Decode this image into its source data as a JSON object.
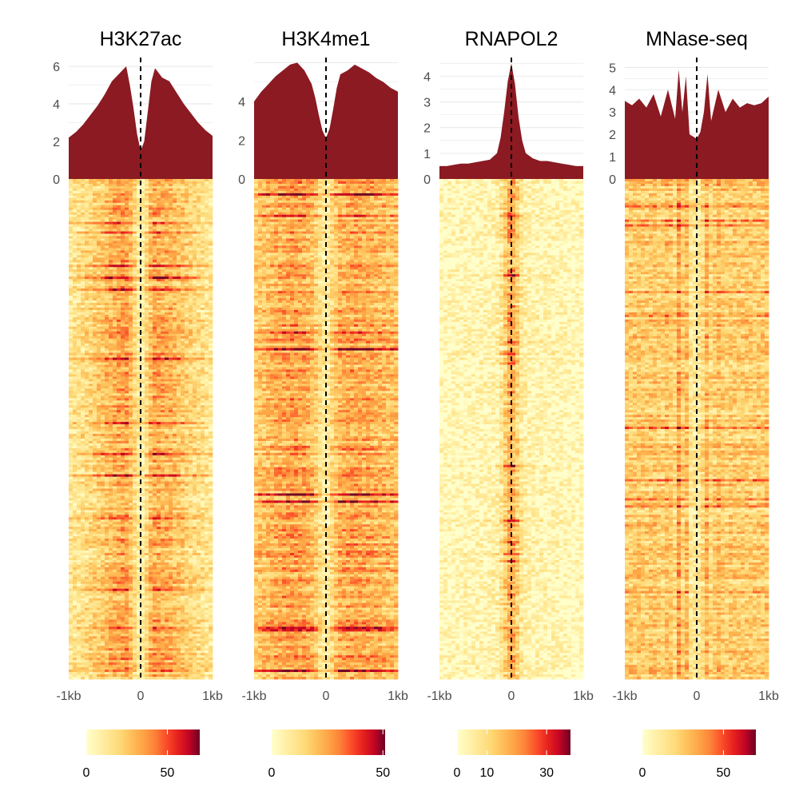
{
  "chart_data": [
    {
      "type": "heatmap",
      "title": "H3K27ac",
      "x_ticks": [
        "-1kb",
        "0",
        "1kb"
      ],
      "profile": {
        "type": "area",
        "ylim": [
          0,
          6.3
        ],
        "y_ticks": [
          0,
          2,
          4,
          6
        ],
        "x": [
          -1.0,
          -0.9,
          -0.8,
          -0.7,
          -0.6,
          -0.5,
          -0.4,
          -0.3,
          -0.2,
          -0.15,
          -0.1,
          -0.05,
          0.0,
          0.05,
          0.1,
          0.15,
          0.2,
          0.3,
          0.4,
          0.5,
          0.6,
          0.7,
          0.8,
          0.9,
          1.0
        ],
        "values": [
          2.2,
          2.5,
          2.9,
          3.4,
          3.9,
          4.5,
          5.2,
          5.6,
          6.0,
          5.0,
          3.8,
          2.4,
          1.5,
          2.0,
          3.6,
          5.2,
          5.9,
          5.4,
          5.2,
          4.6,
          4.0,
          3.5,
          3.0,
          2.6,
          2.3
        ]
      },
      "colorbar": {
        "min": 0,
        "max": 70,
        "ticks": [
          0,
          50
        ]
      }
    },
    {
      "type": "heatmap",
      "title": "H3K4me1",
      "x_ticks": [
        "-1kb",
        "0",
        "1kb"
      ],
      "profile": {
        "type": "area",
        "ylim": [
          0,
          6.1
        ],
        "y_ticks": [
          0,
          2,
          4
        ],
        "x": [
          -1.0,
          -0.9,
          -0.8,
          -0.7,
          -0.6,
          -0.5,
          -0.4,
          -0.3,
          -0.2,
          -0.15,
          -0.1,
          -0.05,
          0.0,
          0.05,
          0.1,
          0.15,
          0.2,
          0.3,
          0.4,
          0.5,
          0.6,
          0.7,
          0.8,
          0.9,
          1.0
        ],
        "values": [
          4.0,
          4.5,
          4.9,
          5.3,
          5.6,
          5.9,
          6.0,
          5.6,
          4.9,
          4.2,
          3.3,
          2.5,
          2.1,
          2.6,
          3.6,
          4.7,
          5.4,
          5.6,
          5.9,
          5.7,
          5.5,
          5.2,
          5.0,
          4.7,
          4.5
        ]
      },
      "colorbar": {
        "min": 0,
        "max": 51,
        "ticks": [
          0,
          50
        ]
      }
    },
    {
      "type": "heatmap",
      "title": "RNAPOL2",
      "x_ticks": [
        "-1kb",
        "0",
        "1kb"
      ],
      "profile": {
        "type": "area",
        "ylim": [
          0,
          4.6
        ],
        "y_ticks": [
          0,
          1,
          2,
          3,
          4
        ],
        "x": [
          -1.0,
          -0.9,
          -0.8,
          -0.7,
          -0.6,
          -0.5,
          -0.4,
          -0.3,
          -0.2,
          -0.15,
          -0.1,
          -0.05,
          0.0,
          0.05,
          0.1,
          0.15,
          0.2,
          0.3,
          0.4,
          0.5,
          0.6,
          0.7,
          0.8,
          0.9,
          1.0
        ],
        "values": [
          0.5,
          0.5,
          0.55,
          0.6,
          0.6,
          0.65,
          0.7,
          0.75,
          1.0,
          1.6,
          2.6,
          3.8,
          4.5,
          3.7,
          2.4,
          1.5,
          1.0,
          0.8,
          0.7,
          0.7,
          0.65,
          0.6,
          0.55,
          0.5,
          0.5
        ]
      },
      "colorbar": {
        "min": 0,
        "max": 38,
        "ticks": [
          0,
          10,
          30
        ]
      }
    },
    {
      "type": "heatmap",
      "title": "MNase-seq",
      "x_ticks": [
        "-1kb",
        "0",
        "1kb"
      ],
      "profile": {
        "type": "area",
        "ylim": [
          0,
          5.3
        ],
        "y_ticks": [
          0,
          1,
          2,
          3,
          4,
          5
        ],
        "x": [
          -1.0,
          -0.9,
          -0.8,
          -0.7,
          -0.6,
          -0.5,
          -0.4,
          -0.3,
          -0.25,
          -0.2,
          -0.15,
          -0.1,
          -0.05,
          0.0,
          0.05,
          0.1,
          0.15,
          0.2,
          0.25,
          0.3,
          0.4,
          0.5,
          0.6,
          0.7,
          0.8,
          0.9,
          1.0
        ],
        "values": [
          3.5,
          3.3,
          3.6,
          3.2,
          3.8,
          2.8,
          4.0,
          2.7,
          4.9,
          3.0,
          4.6,
          2.0,
          1.9,
          1.8,
          2.1,
          3.0,
          4.7,
          2.6,
          3.3,
          4.0,
          3.0,
          3.6,
          3.2,
          3.4,
          3.3,
          3.4,
          3.7
        ]
      },
      "colorbar": {
        "min": 0,
        "max": 70,
        "ticks": [
          0,
          50
        ]
      }
    }
  ]
}
